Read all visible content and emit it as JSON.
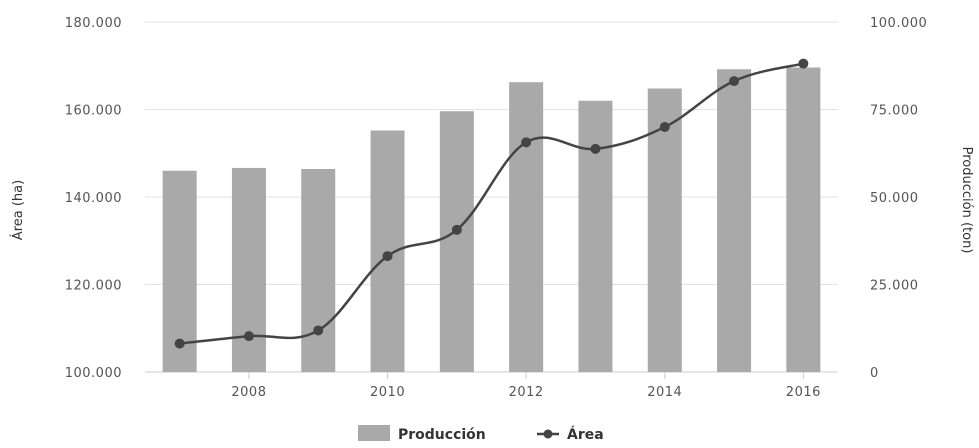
{
  "chart_data": {
    "type": "bar+line",
    "x": [
      2007,
      2008,
      2009,
      2010,
      2011,
      2012,
      2013,
      2014,
      2015,
      2016
    ],
    "x_tick_labels": [
      "2008",
      "2010",
      "2012",
      "2014",
      "2016"
    ],
    "x_tick_values": [
      2008,
      2010,
      2012,
      2014,
      2016
    ],
    "series": [
      {
        "name": "Producción",
        "type": "bar",
        "axis": "right",
        "values": [
          57500,
          58300,
          58000,
          69000,
          74500,
          82800,
          77500,
          81000,
          86500,
          87000
        ]
      },
      {
        "name": "Área",
        "type": "line",
        "axis": "left",
        "values": [
          106500,
          108200,
          109500,
          126500,
          132500,
          152500,
          151000,
          156000,
          166500,
          170500
        ]
      }
    ],
    "y_left": {
      "label": "Área (ha)",
      "ylim": [
        100000,
        180000
      ],
      "ticks": [
        100000,
        120000,
        140000,
        160000,
        180000
      ],
      "tick_labels": [
        "100.000",
        "120.000",
        "140.000",
        "160.000",
        "180.000"
      ]
    },
    "y_right": {
      "label": "Producción (ton)",
      "ylim": [
        0,
        100000
      ],
      "ticks": [
        0,
        25000,
        50000,
        75000,
        100000
      ],
      "tick_labels": [
        "0",
        "25.000",
        "50.000",
        "75.000",
        "100.000"
      ]
    },
    "grid": true,
    "legend_position": "bottom-center",
    "colors": {
      "bar": "#a9a9a9",
      "line": "#444444",
      "grid": "#e3e3e3"
    }
  }
}
